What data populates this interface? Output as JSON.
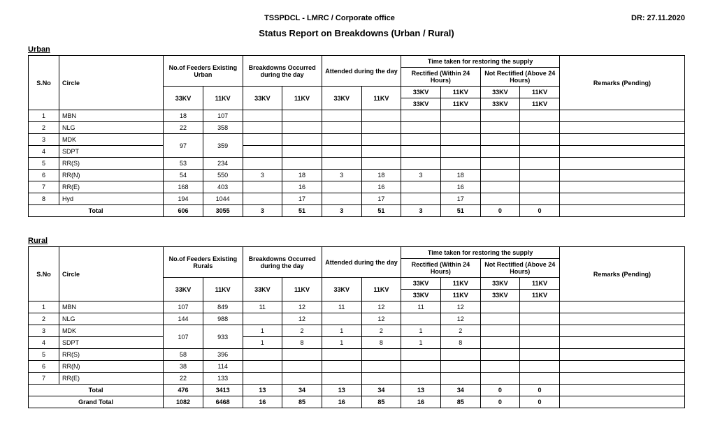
{
  "header": {
    "left": "TSSPDCL - LMRC / Corporate office",
    "right": "DR: 27.11.2020"
  },
  "title": "Status Report on Breakdowns  (Urban / Rural)",
  "columns": {
    "sno": "S.No",
    "circle": "Circle",
    "feeders_urban": "No.of Feeders Existing Urban",
    "feeders_rural": "No.of Feeders Existing Rurals",
    "breakdowns": "Breakdowns Occurred during the day",
    "attended": "Attended during the day",
    "time_taken": "Time taken for restoring the supply",
    "rectified": "Rectified (Within 24 Hours)",
    "not_rectified": "Not Rectified (Above 24 Hours)",
    "remarks": "Remarks (Pending)",
    "kv33": "33KV",
    "kv11": "11KV"
  },
  "section_labels": {
    "urban": "Urban",
    "rural": "Rural"
  },
  "urban": {
    "rows": [
      {
        "sno": "1",
        "circle": "MBN",
        "f33": "18",
        "f11": "107",
        "b33": "",
        "b11": "",
        "a33": "",
        "a11": "",
        "r33": "",
        "r11": "",
        "n33": "",
        "n11": "",
        "rem": "",
        "merge": false
      },
      {
        "sno": "2",
        "circle": "NLG",
        "f33": "22",
        "f11": "358",
        "b33": "",
        "b11": "",
        "a33": "",
        "a11": "",
        "r33": "",
        "r11": "",
        "n33": "",
        "n11": "",
        "rem": "",
        "merge": false
      },
      {
        "sno": "3",
        "circle": "MDK",
        "f33": "97",
        "f11": "359",
        "b33": "",
        "b11": "",
        "a33": "",
        "a11": "",
        "r33": "",
        "r11": "",
        "n33": "",
        "n11": "",
        "rem": "",
        "merge": "top"
      },
      {
        "sno": "4",
        "circle": "SDPT",
        "f33": "",
        "f11": "",
        "b33": "",
        "b11": "",
        "a33": "",
        "a11": "",
        "r33": "",
        "r11": "",
        "n33": "",
        "n11": "",
        "rem": "",
        "merge": "bottom"
      },
      {
        "sno": "5",
        "circle": "RR(S)",
        "f33": "53",
        "f11": "234",
        "b33": "",
        "b11": "",
        "a33": "",
        "a11": "",
        "r33": "",
        "r11": "",
        "n33": "",
        "n11": "",
        "rem": "",
        "merge": false
      },
      {
        "sno": "6",
        "circle": "RR(N)",
        "f33": "54",
        "f11": "550",
        "b33": "3",
        "b11": "18",
        "a33": "3",
        "a11": "18",
        "r33": "3",
        "r11": "18",
        "n33": "",
        "n11": "",
        "rem": "",
        "merge": false
      },
      {
        "sno": "7",
        "circle": "RR(E)",
        "f33": "168",
        "f11": "403",
        "b33": "",
        "b11": "16",
        "a33": "",
        "a11": "16",
        "r33": "",
        "r11": "16",
        "n33": "",
        "n11": "",
        "rem": "",
        "merge": false
      },
      {
        "sno": "8",
        "circle": "Hyd",
        "f33": "194",
        "f11": "1044",
        "b33": "",
        "b11": "17",
        "a33": "",
        "a11": "17",
        "r33": "",
        "r11": "17",
        "n33": "",
        "n11": "",
        "rem": "",
        "merge": false
      }
    ],
    "total_label": "Total",
    "total": {
      "f33": "606",
      "f11": "3055",
      "b33": "3",
      "b11": "51",
      "a33": "3",
      "a11": "51",
      "r33": "3",
      "r11": "51",
      "n33": "0",
      "n11": "0",
      "rem": ""
    }
  },
  "rural": {
    "rows": [
      {
        "sno": "1",
        "circle": "MBN",
        "f33": "107",
        "f11": "849",
        "b33": "11",
        "b11": "12",
        "a33": "11",
        "a11": "12",
        "r33": "11",
        "r11": "12",
        "n33": "",
        "n11": "",
        "rem": "",
        "merge": false
      },
      {
        "sno": "2",
        "circle": "NLG",
        "f33": "144",
        "f11": "988",
        "b33": "",
        "b11": "12",
        "a33": "",
        "a11": "12",
        "r33": "",
        "r11": "12",
        "n33": "",
        "n11": "",
        "rem": "",
        "merge": false
      },
      {
        "sno": "3",
        "circle": "MDK",
        "f33": "107",
        "f11": "933",
        "b33": "1",
        "b11": "2",
        "a33": "1",
        "a11": "2",
        "r33": "1",
        "r11": "2",
        "n33": "",
        "n11": "",
        "rem": "",
        "merge": "top"
      },
      {
        "sno": "4",
        "circle": "SDPT",
        "f33": "",
        "f11": "",
        "b33": "1",
        "b11": "8",
        "a33": "1",
        "a11": "8",
        "r33": "1",
        "r11": "8",
        "n33": "",
        "n11": "",
        "rem": "",
        "merge": "bottom"
      },
      {
        "sno": "5",
        "circle": "RR(S)",
        "f33": "58",
        "f11": "396",
        "b33": "",
        "b11": "",
        "a33": "",
        "a11": "",
        "r33": "",
        "r11": "",
        "n33": "",
        "n11": "",
        "rem": "",
        "merge": false
      },
      {
        "sno": "6",
        "circle": "RR(N)",
        "f33": "38",
        "f11": "114",
        "b33": "",
        "b11": "",
        "a33": "",
        "a11": "",
        "r33": "",
        "r11": "",
        "n33": "",
        "n11": "",
        "rem": "",
        "merge": false
      },
      {
        "sno": "7",
        "circle": "RR(E)",
        "f33": "22",
        "f11": "133",
        "b33": "",
        "b11": "",
        "a33": "",
        "a11": "",
        "r33": "",
        "r11": "",
        "n33": "",
        "n11": "",
        "rem": "",
        "merge": false
      }
    ],
    "total_label": "Total",
    "total": {
      "f33": "476",
      "f11": "3413",
      "b33": "13",
      "b11": "34",
      "a33": "13",
      "a11": "34",
      "r33": "13",
      "r11": "34",
      "n33": "0",
      "n11": "0",
      "rem": ""
    }
  },
  "grand_total_label": "Grand Total",
  "grand": {
    "f33": "1082",
    "f11": "6468",
    "b33": "16",
    "b11": "85",
    "a33": "16",
    "a11": "85",
    "r33": "16",
    "r11": "85",
    "n33": "0",
    "n11": "0",
    "rem": ""
  }
}
